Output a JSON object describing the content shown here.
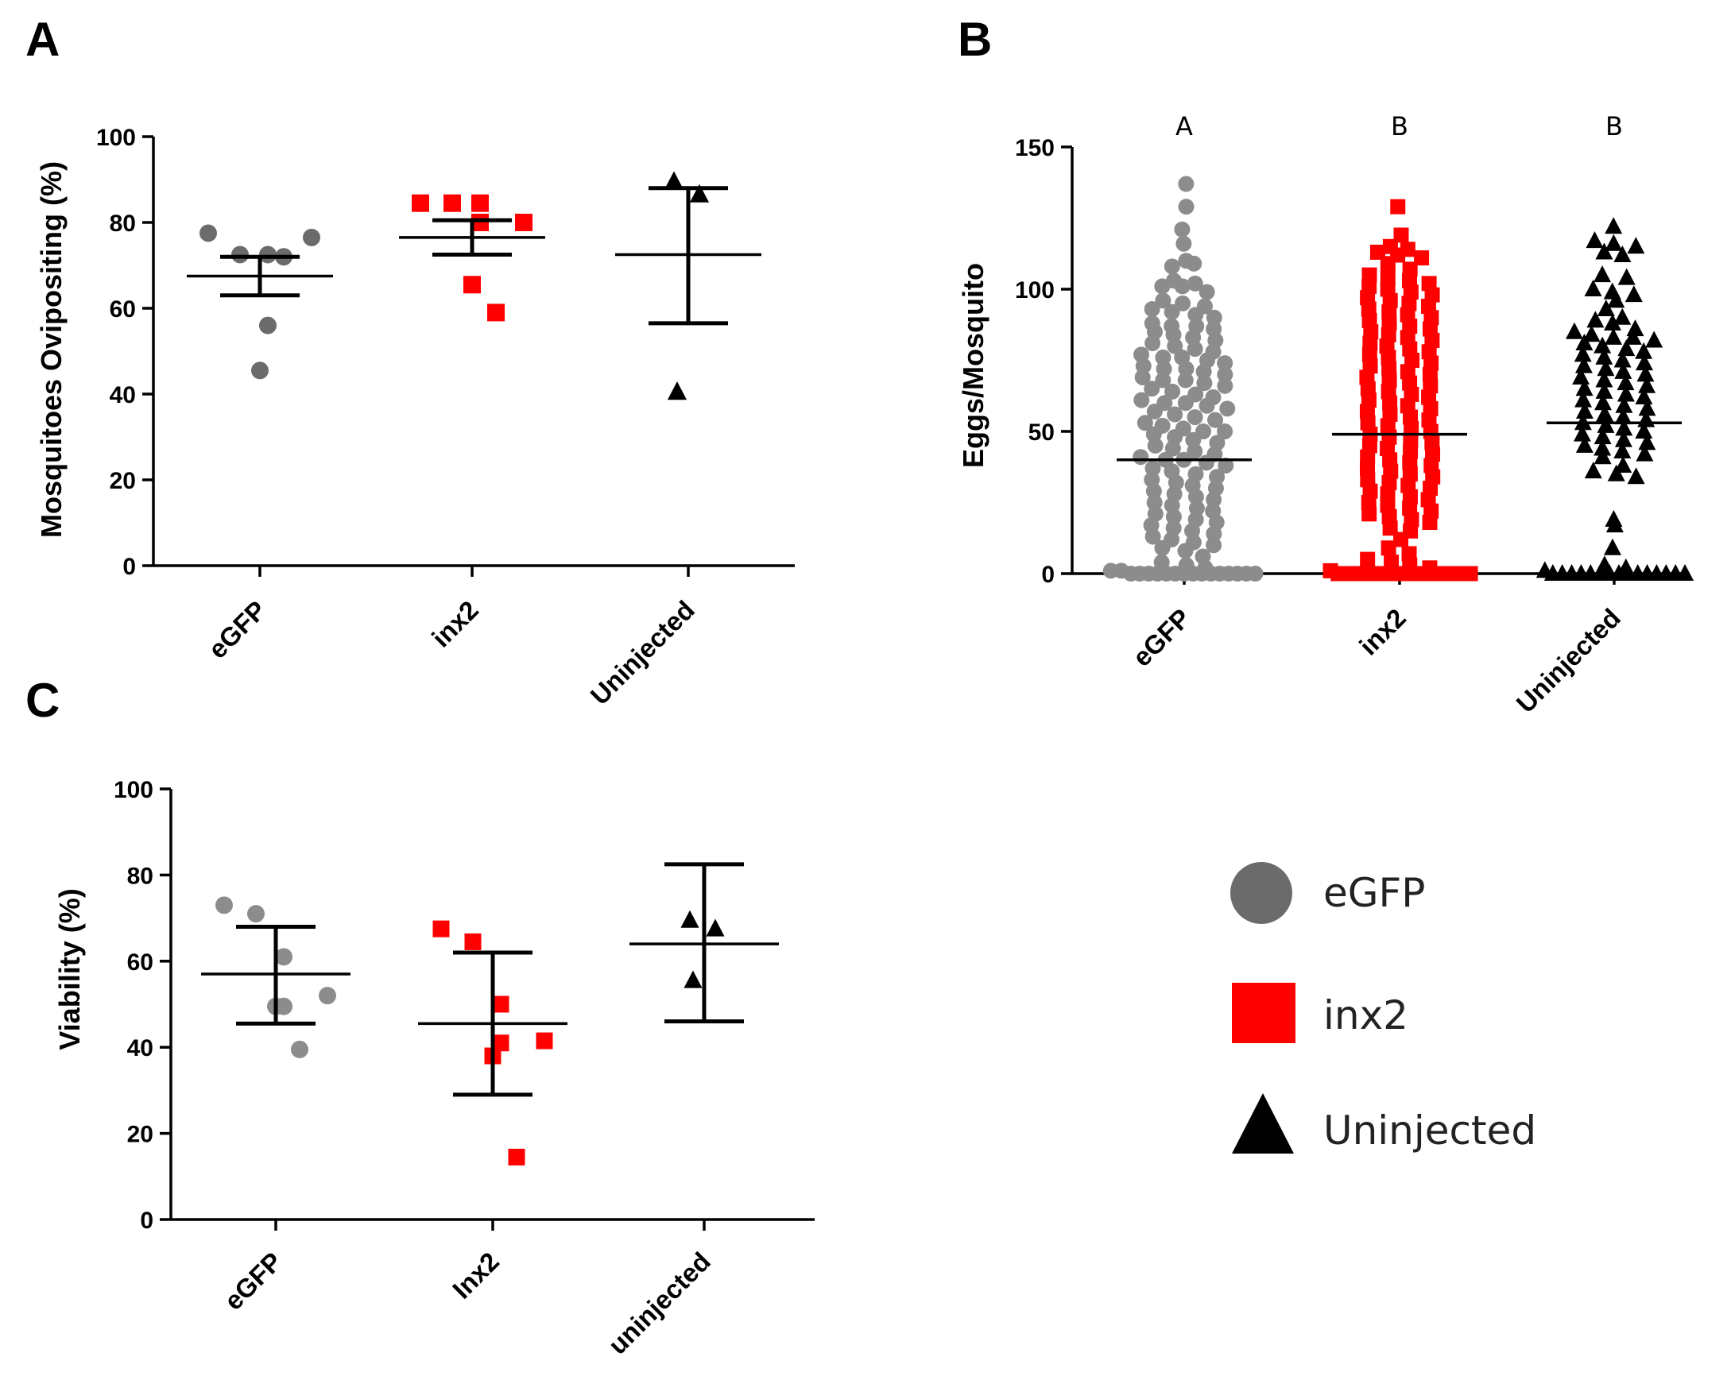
{
  "legend": {
    "entries": [
      {
        "label": "eGFP",
        "shape": "circle",
        "color": "#6b6b6b"
      },
      {
        "label": "inx2",
        "shape": "square",
        "color": "#ff0000"
      },
      {
        "label": "Uninjected",
        "shape": "triangle",
        "color": "#000000"
      }
    ]
  },
  "chart_data": [
    {
      "panel": "A",
      "type": "scatter",
      "title": "",
      "ylabel": "Mosquitoes Ovipositing (%)",
      "xlabel": "",
      "ylim": [
        0,
        100
      ],
      "yticks": [
        0,
        20,
        40,
        60,
        80,
        100
      ],
      "categories": [
        "eGFP",
        "inx2",
        "Uninjected"
      ],
      "series": [
        {
          "name": "eGFP",
          "shape": "circle",
          "color": "#6b6b6b",
          "values": [
            77.5,
            72.5,
            72.5,
            76.5,
            56,
            45.5,
            72
          ],
          "mean": 67.5,
          "err_low": 63,
          "err_high": 72
        },
        {
          "name": "inx2",
          "shape": "square",
          "color": "#ff0000",
          "values": [
            84.5,
            84.5,
            80,
            80,
            84.5,
            65.5,
            59
          ],
          "mean": 76.5,
          "err_low": 72.5,
          "err_high": 80.5
        },
        {
          "name": "Uninjected",
          "shape": "triangle",
          "color": "#000000",
          "values": [
            89.5,
            86.5,
            40.5
          ],
          "mean": 72.5,
          "err_low": 56.5,
          "err_high": 88
        }
      ]
    },
    {
      "panel": "B",
      "type": "scatter",
      "title": "",
      "ylabel": "Eggs/Mosquito",
      "xlabel": "",
      "ylim": [
        0,
        150
      ],
      "yticks": [
        0,
        50,
        100,
        150
      ],
      "categories": [
        "eGFP",
        "inx2",
        "Uninjected"
      ],
      "significance": [
        "A",
        "B",
        "B"
      ],
      "series": [
        {
          "name": "eGFP",
          "shape": "circle",
          "color": "#8c8c8c",
          "median": 40,
          "values": [
            137,
            129,
            121,
            116,
            110,
            108,
            109,
            103,
            102,
            101,
            101,
            99,
            96,
            95,
            94,
            93,
            92,
            91,
            90,
            88,
            87,
            87,
            86,
            85,
            84,
            83,
            82,
            81,
            80,
            79,
            78,
            77,
            76,
            76,
            75,
            74,
            73,
            72,
            72,
            71,
            70,
            69,
            68,
            68,
            67,
            66,
            65,
            64,
            63,
            62,
            61,
            60,
            60,
            59,
            58,
            57,
            56,
            55,
            54,
            53,
            52,
            51,
            50,
            50,
            49,
            48,
            47,
            46,
            45,
            44,
            43,
            42,
            41,
            40,
            40,
            39,
            38,
            37,
            36,
            35,
            34,
            33,
            32,
            31,
            30,
            29,
            28,
            27,
            26,
            25,
            24,
            23,
            22,
            21,
            20,
            19,
            18,
            17,
            16,
            15,
            14,
            13,
            12,
            11,
            10,
            9,
            8,
            6,
            4,
            3,
            2,
            1,
            1,
            0,
            0,
            0,
            0,
            0,
            0,
            0,
            0,
            0,
            0,
            0,
            0,
            0,
            0,
            0
          ]
        },
        {
          "name": "inx2",
          "shape": "square",
          "color": "#ff0000",
          "median": 49,
          "values": [
            129,
            119,
            115,
            114,
            113,
            112,
            111,
            109,
            107,
            105,
            104,
            103,
            102,
            101,
            100,
            99,
            98,
            97,
            96,
            95,
            94,
            93,
            92,
            91,
            90,
            89,
            88,
            87,
            86,
            85,
            84,
            83,
            82,
            81,
            80,
            79,
            78,
            77,
            76,
            75,
            74,
            73,
            72,
            71,
            70,
            69,
            68,
            67,
            66,
            65,
            64,
            63,
            62,
            61,
            60,
            59,
            58,
            57,
            56,
            55,
            54,
            53,
            52,
            51,
            50,
            49,
            48,
            47,
            46,
            45,
            44,
            43,
            42,
            41,
            40,
            39,
            38,
            37,
            36,
            35,
            34,
            33,
            32,
            31,
            30,
            29,
            28,
            27,
            26,
            25,
            24,
            23,
            22,
            21,
            20,
            19,
            18,
            16,
            15,
            12,
            9,
            7,
            5,
            4,
            3,
            2,
            1,
            0,
            0,
            0,
            0,
            0,
            0,
            0,
            0,
            0,
            0,
            0,
            0,
            0,
            0,
            0
          ]
        },
        {
          "name": "Uninjected",
          "shape": "triangle",
          "color": "#000000",
          "median": 53,
          "values": [
            122,
            117,
            116,
            115,
            113,
            112,
            105,
            104,
            100,
            99,
            98,
            96,
            93,
            90,
            89,
            88,
            86,
            85,
            84,
            83,
            83,
            82,
            81,
            80,
            79,
            78,
            77,
            76,
            75,
            74,
            73,
            72,
            71,
            70,
            69,
            68,
            67,
            66,
            65,
            64,
            63,
            62,
            61,
            60,
            59,
            58,
            57,
            56,
            55,
            54,
            53,
            52,
            51,
            50,
            49,
            48,
            47,
            46,
            45,
            44,
            43,
            42,
            41,
            38,
            36,
            35,
            34,
            19,
            17,
            9,
            3,
            2,
            1,
            0,
            0,
            0,
            0,
            0,
            0,
            0,
            0,
            0,
            0,
            0,
            0,
            0,
            0,
            0
          ]
        }
      ]
    },
    {
      "panel": "C",
      "type": "scatter",
      "title": "",
      "ylabel": "Viability (%)",
      "xlabel": "",
      "ylim": [
        0,
        100
      ],
      "yticks": [
        0,
        20,
        40,
        60,
        80,
        100
      ],
      "categories": [
        "eGFP",
        "Inx2",
        "uninjected"
      ],
      "series": [
        {
          "name": "eGFP",
          "shape": "circle",
          "color": "#8c8c8c",
          "values": [
            73,
            71,
            61,
            52,
            49.5,
            49.5,
            39.5
          ],
          "mean": 57,
          "err_low": 45.5,
          "err_high": 68
        },
        {
          "name": "Inx2",
          "shape": "square",
          "color": "#ff0000",
          "values": [
            67.5,
            64.5,
            50,
            41.5,
            41,
            38,
            14.5
          ],
          "mean": 45.5,
          "err_low": 29,
          "err_high": 62
        },
        {
          "name": "uninjected",
          "shape": "triangle",
          "color": "#000000",
          "values": [
            69.5,
            67.5,
            55.5
          ],
          "mean": 64,
          "err_low": 46,
          "err_high": 82.5
        }
      ]
    }
  ]
}
